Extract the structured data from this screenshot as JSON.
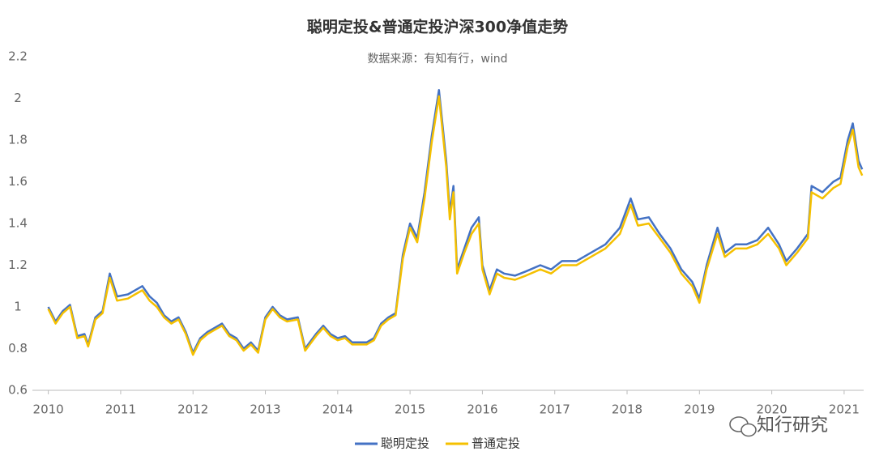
{
  "chart_data": {
    "type": "line",
    "title": "聪明定投&普通定投沪深300净值走势",
    "subtitle": "数据来源：有知有行，wind",
    "watermark": "知行研究",
    "xlim": [
      2009.78,
      2021.27
    ],
    "xticks": [
      2010,
      2011,
      2012,
      2013,
      2014,
      2015,
      2016,
      2017,
      2018,
      2019,
      2020,
      2021
    ],
    "ylim": [
      0.6,
      2.2
    ],
    "yticks": [
      0.6,
      0.8,
      1,
      1.2,
      1.4,
      1.6,
      1.8,
      2,
      2.2
    ],
    "legend": "bottom",
    "x": [
      2010.0,
      2010.1,
      2010.2,
      2010.3,
      2010.4,
      2010.5,
      2010.55,
      2010.65,
      2010.75,
      2010.85,
      2010.95,
      2011.1,
      2011.2,
      2011.3,
      2011.4,
      2011.5,
      2011.6,
      2011.7,
      2011.8,
      2011.9,
      2012.0,
      2012.1,
      2012.2,
      2012.3,
      2012.4,
      2012.5,
      2012.6,
      2012.7,
      2012.8,
      2012.9,
      2013.0,
      2013.1,
      2013.2,
      2013.3,
      2013.45,
      2013.55,
      2013.7,
      2013.8,
      2013.9,
      2014.0,
      2014.1,
      2014.2,
      2014.3,
      2014.4,
      2014.5,
      2014.6,
      2014.7,
      2014.8,
      2014.9,
      2015.0,
      2015.1,
      2015.2,
      2015.3,
      2015.4,
      2015.5,
      2015.55,
      2015.6,
      2015.65,
      2015.75,
      2015.85,
      2015.95,
      2016.0,
      2016.1,
      2016.2,
      2016.3,
      2016.45,
      2016.6,
      2016.8,
      2016.95,
      2017.1,
      2017.3,
      2017.5,
      2017.7,
      2017.9,
      2018.05,
      2018.15,
      2018.3,
      2018.45,
      2018.6,
      2018.75,
      2018.9,
      2019.0,
      2019.1,
      2019.25,
      2019.35,
      2019.5,
      2019.65,
      2019.8,
      2019.95,
      2020.1,
      2020.2,
      2020.35,
      2020.5,
      2020.55,
      2020.7,
      2020.85,
      2020.95,
      2021.05,
      2021.12,
      2021.2,
      2021.25
    ],
    "series": [
      {
        "name": "聪明定投",
        "color": "#4472c4",
        "values": [
          1.0,
          0.93,
          0.98,
          1.01,
          0.86,
          0.87,
          0.82,
          0.95,
          0.98,
          1.16,
          1.05,
          1.06,
          1.08,
          1.1,
          1.05,
          1.02,
          0.96,
          0.93,
          0.95,
          0.88,
          0.78,
          0.85,
          0.88,
          0.9,
          0.92,
          0.87,
          0.85,
          0.8,
          0.83,
          0.79,
          0.95,
          1.0,
          0.96,
          0.94,
          0.95,
          0.8,
          0.87,
          0.91,
          0.87,
          0.85,
          0.86,
          0.83,
          0.83,
          0.83,
          0.85,
          0.92,
          0.95,
          0.97,
          1.25,
          1.4,
          1.33,
          1.55,
          1.82,
          2.04,
          1.7,
          1.45,
          1.58,
          1.18,
          1.28,
          1.38,
          1.43,
          1.2,
          1.08,
          1.18,
          1.16,
          1.15,
          1.17,
          1.2,
          1.18,
          1.22,
          1.22,
          1.26,
          1.3,
          1.38,
          1.52,
          1.42,
          1.43,
          1.35,
          1.28,
          1.18,
          1.12,
          1.04,
          1.2,
          1.38,
          1.26,
          1.3,
          1.3,
          1.32,
          1.38,
          1.3,
          1.22,
          1.28,
          1.35,
          1.58,
          1.55,
          1.6,
          1.62,
          1.8,
          1.88,
          1.7,
          1.66
        ]
      },
      {
        "name": "普通定投",
        "color": "#f5c000",
        "values": [
          0.99,
          0.92,
          0.97,
          1.0,
          0.85,
          0.86,
          0.81,
          0.94,
          0.97,
          1.14,
          1.03,
          1.04,
          1.06,
          1.08,
          1.03,
          1.0,
          0.95,
          0.92,
          0.94,
          0.87,
          0.77,
          0.84,
          0.87,
          0.89,
          0.91,
          0.86,
          0.84,
          0.79,
          0.82,
          0.78,
          0.94,
          0.99,
          0.95,
          0.93,
          0.94,
          0.79,
          0.86,
          0.9,
          0.86,
          0.84,
          0.85,
          0.82,
          0.82,
          0.82,
          0.84,
          0.91,
          0.94,
          0.96,
          1.23,
          1.38,
          1.31,
          1.52,
          1.79,
          2.01,
          1.67,
          1.42,
          1.55,
          1.16,
          1.26,
          1.35,
          1.4,
          1.18,
          1.06,
          1.16,
          1.14,
          1.13,
          1.15,
          1.18,
          1.16,
          1.2,
          1.2,
          1.24,
          1.28,
          1.35,
          1.49,
          1.39,
          1.4,
          1.33,
          1.26,
          1.16,
          1.1,
          1.02,
          1.18,
          1.35,
          1.24,
          1.28,
          1.28,
          1.3,
          1.35,
          1.28,
          1.2,
          1.26,
          1.33,
          1.55,
          1.52,
          1.57,
          1.59,
          1.77,
          1.85,
          1.67,
          1.63
        ]
      }
    ]
  }
}
